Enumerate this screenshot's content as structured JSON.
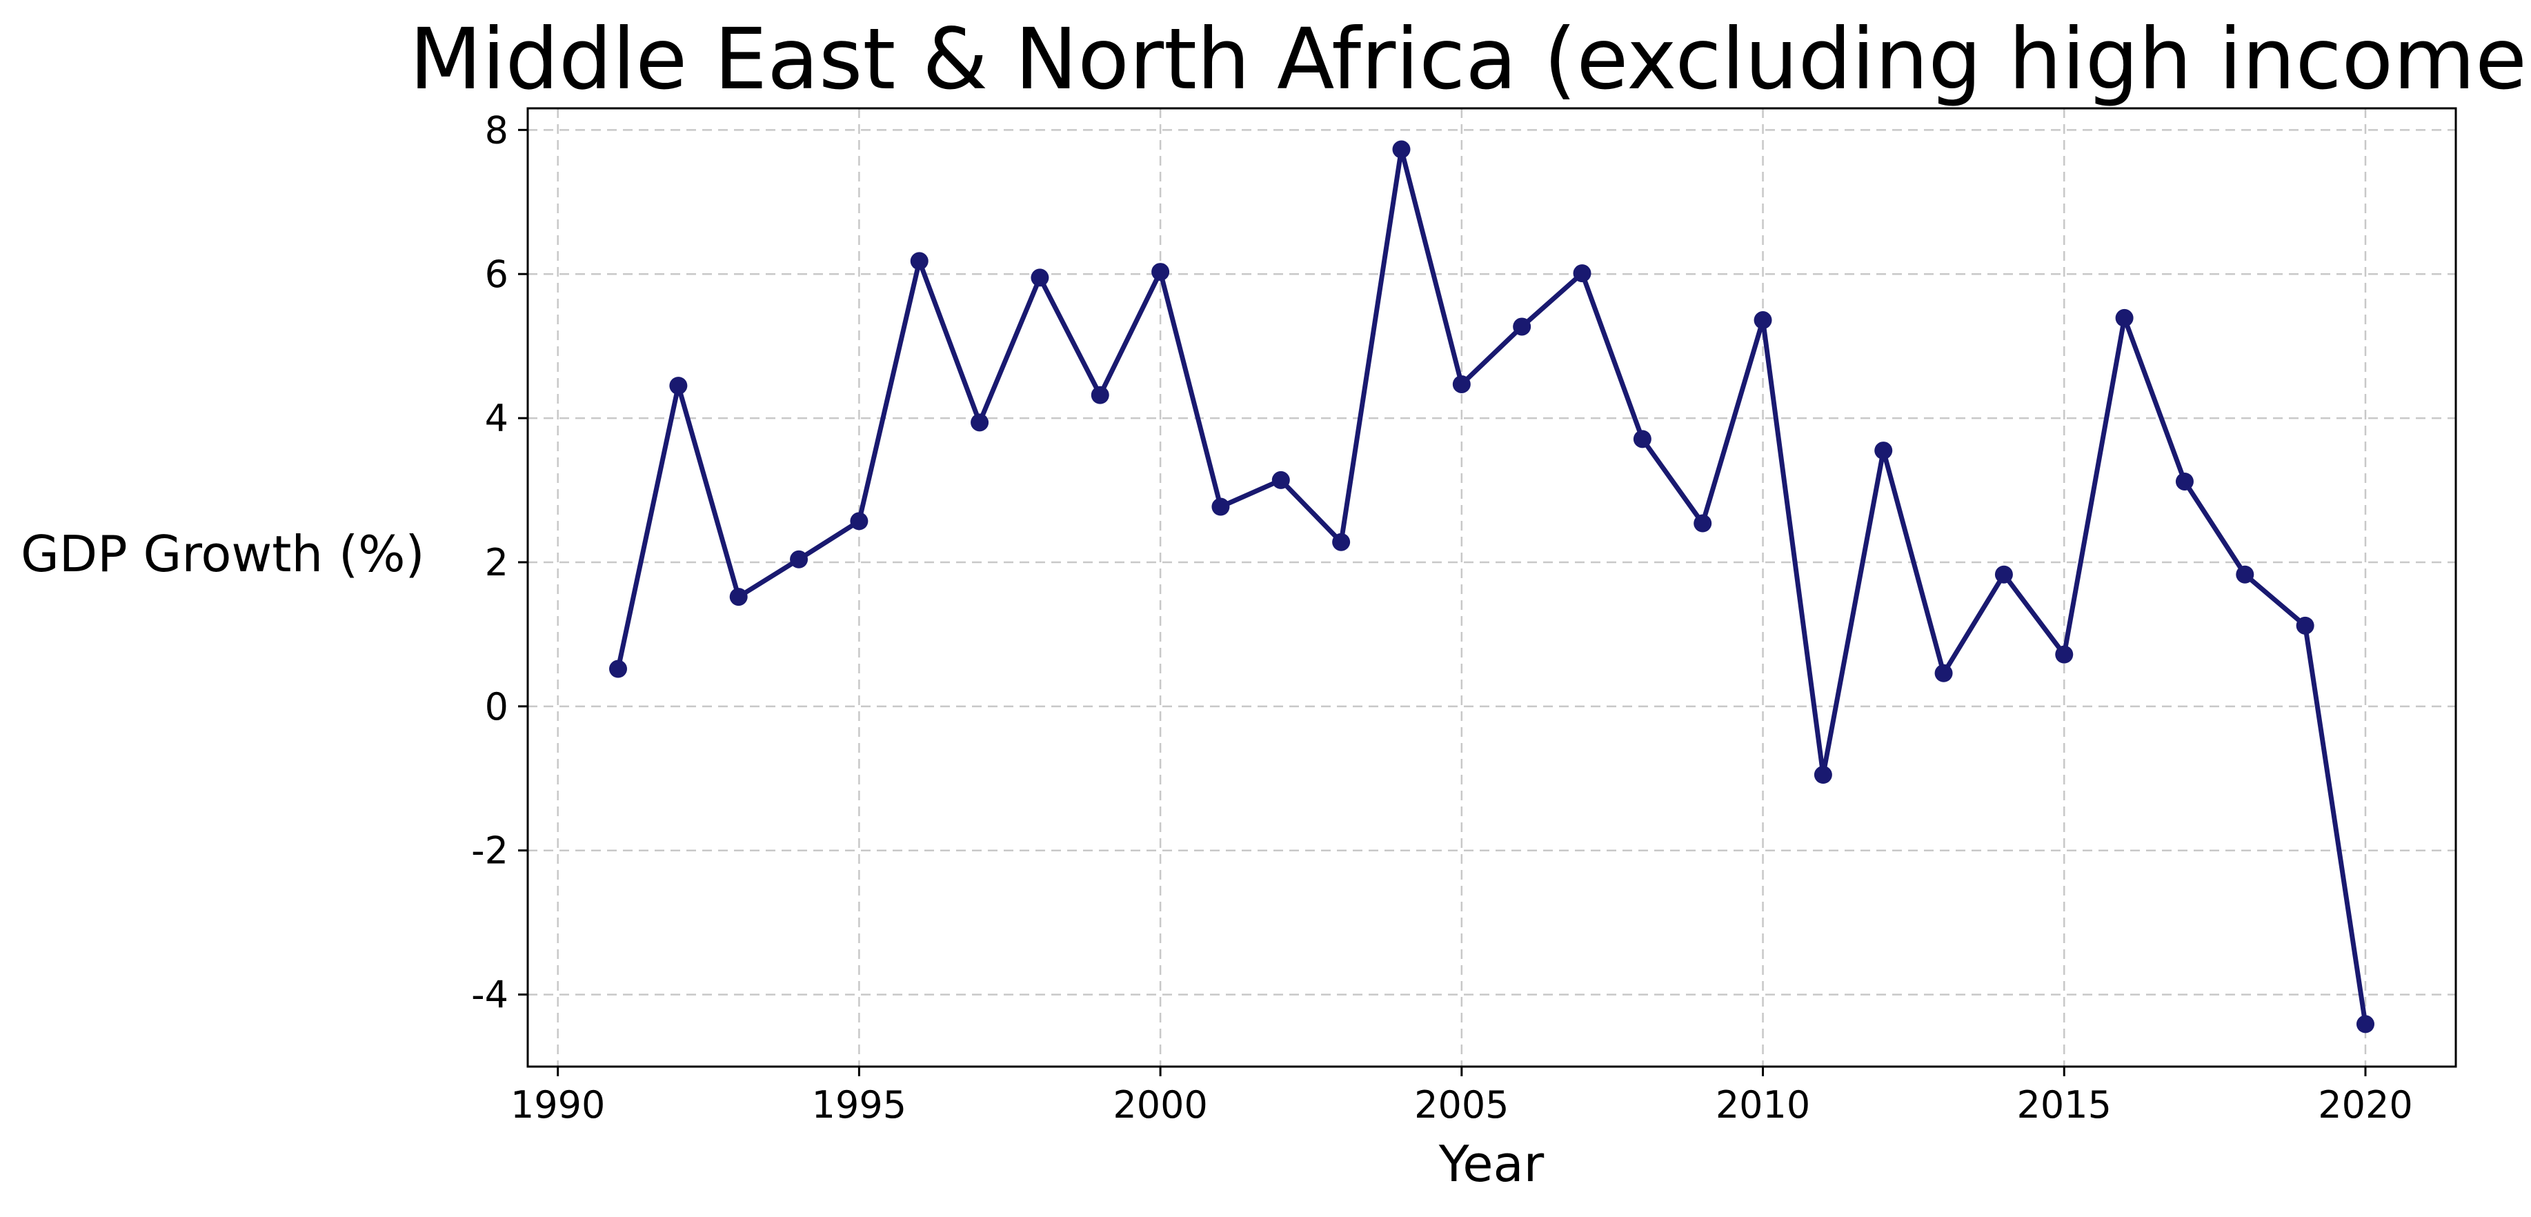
{
  "chart_data": {
    "type": "line",
    "title": "Middle East & North Africa (excluding high income)",
    "xlabel": "Year",
    "ylabel": "GDP Growth (%)",
    "xlim": [
      1989.5,
      2021.5
    ],
    "ylim": [
      -5,
      8.3
    ],
    "x_ticks": [
      1990,
      1995,
      2000,
      2005,
      2010,
      2015,
      2020
    ],
    "y_ticks": [
      -4,
      -2,
      0,
      2,
      4,
      6,
      8
    ],
    "y_tick_labels": [
      "-4",
      "-2",
      "0",
      "2",
      "4",
      "6",
      "8"
    ],
    "grid": true,
    "line_color": "#191970",
    "marker": "circle",
    "series": [
      {
        "x": [
          1991,
          1992,
          1993,
          1994,
          1995,
          1996,
          1997,
          1998,
          1999,
          2000,
          2001,
          2002,
          2003,
          2004,
          2005,
          2006,
          2007,
          2008,
          2009,
          2010,
          2011,
          2012,
          2013,
          2014,
          2015,
          2016,
          2017,
          2018,
          2019,
          2020
        ],
        "values": [
          0.52,
          4.45,
          1.52,
          2.04,
          2.57,
          6.18,
          3.94,
          5.95,
          4.32,
          6.03,
          2.77,
          3.14,
          2.28,
          7.73,
          4.47,
          5.27,
          6.01,
          3.71,
          2.54,
          5.36,
          -0.95,
          3.55,
          0.46,
          1.83,
          0.72,
          5.39,
          3.12,
          1.83,
          1.12,
          -4.41
        ]
      }
    ]
  }
}
